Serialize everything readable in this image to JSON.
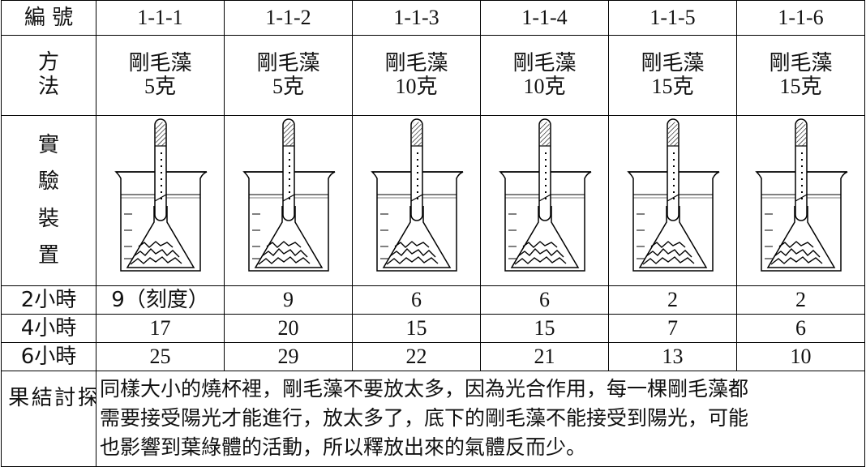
{
  "table": {
    "header": {
      "label": "編 號",
      "cells": [
        "1-1-1",
        "1-1-2",
        "1-1-3",
        "1-1-4",
        "1-1-5",
        "1-1-6"
      ]
    },
    "method": {
      "label": "方法",
      "cells": [
        {
          "name": "剛毛藻",
          "amount": "5克"
        },
        {
          "name": "剛毛藻",
          "amount": "5克"
        },
        {
          "name": "剛毛藻",
          "amount": "10克"
        },
        {
          "name": "剛毛藻",
          "amount": "10克"
        },
        {
          "name": "剛毛藻",
          "amount": "15克"
        },
        {
          "name": "剛毛藻",
          "amount": "15克"
        }
      ]
    },
    "apparatus": {
      "label": "實驗裝置"
    },
    "results": [
      {
        "label": "2小時",
        "values": [
          "9（刻度）",
          9,
          6,
          6,
          2,
          2
        ]
      },
      {
        "label": "4小時",
        "values": [
          17,
          20,
          15,
          15,
          7,
          6
        ]
      },
      {
        "label": "6小時",
        "values": [
          25,
          29,
          22,
          21,
          13,
          10
        ]
      }
    ],
    "conclusion": {
      "label": "探討結果",
      "lines": [
        "同樣大小的燒杯裡，剛毛藻不要放太多，因為光合作用，每一棵剛毛藻都",
        "需要接受陽光才能進行，放太多了，底下的剛毛藻不能接受到陽光，可能",
        "也影響到葉綠體的活動，所以釋放出來的氣體反而少。"
      ]
    }
  }
}
